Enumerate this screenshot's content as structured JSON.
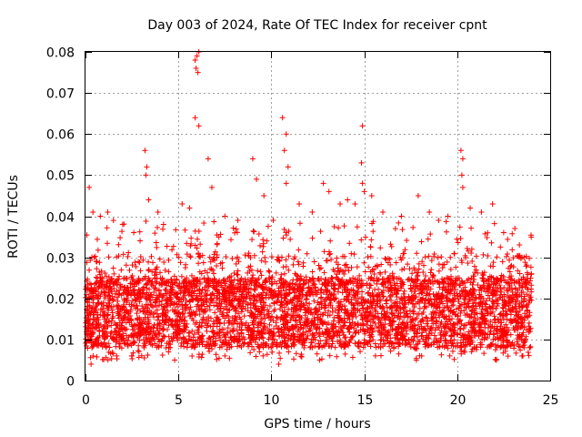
{
  "chart_data": {
    "type": "scatter",
    "title": "Day 003 of 2024, Rate Of TEC Index for receiver cpnt",
    "xlabel": "GPS time / hours",
    "ylabel": "ROTI / TECUs",
    "xlim": [
      0,
      25
    ],
    "ylim": [
      0,
      0.08
    ],
    "xticks": [
      "0",
      "5",
      "10",
      "15",
      "20",
      "25"
    ],
    "yticks": [
      "0",
      "0.01",
      "0.02",
      "0.03",
      "0.04",
      "0.05",
      "0.06",
      "0.07",
      "0.08"
    ],
    "grid": true,
    "marker": "+",
    "color": "#ff0000",
    "series": [
      {
        "name": "ROTI",
        "note": "dense cloud of several thousand points, 0-24 h, bulk 0.005-0.03 TECU/s; representative points below",
        "points": [
          [
            0.2,
            0.047
          ],
          [
            0.4,
            0.041
          ],
          [
            0.8,
            0.04
          ],
          [
            1.2,
            0.041
          ],
          [
            2.0,
            0.038
          ],
          [
            2.6,
            0.036
          ],
          [
            3.2,
            0.056
          ],
          [
            3.3,
            0.052
          ],
          [
            3.25,
            0.05
          ],
          [
            3.4,
            0.044
          ],
          [
            3.9,
            0.041
          ],
          [
            4.2,
            0.038
          ],
          [
            5.2,
            0.043
          ],
          [
            5.6,
            0.042
          ],
          [
            5.9,
            0.078
          ],
          [
            6.0,
            0.079
          ],
          [
            6.1,
            0.08
          ],
          [
            5.95,
            0.076
          ],
          [
            6.05,
            0.075
          ],
          [
            5.9,
            0.064
          ],
          [
            6.1,
            0.062
          ],
          [
            6.6,
            0.054
          ],
          [
            6.8,
            0.047
          ],
          [
            7.5,
            0.04
          ],
          [
            8.2,
            0.039
          ],
          [
            9.0,
            0.054
          ],
          [
            9.2,
            0.049
          ],
          [
            9.6,
            0.045
          ],
          [
            10.1,
            0.039
          ],
          [
            10.6,
            0.064
          ],
          [
            10.8,
            0.06
          ],
          [
            10.7,
            0.056
          ],
          [
            10.9,
            0.052
          ],
          [
            10.8,
            0.048
          ],
          [
            11.5,
            0.043
          ],
          [
            12.2,
            0.041
          ],
          [
            12.8,
            0.048
          ],
          [
            13.1,
            0.046
          ],
          [
            13.7,
            0.043
          ],
          [
            14.1,
            0.044
          ],
          [
            14.5,
            0.043
          ],
          [
            14.9,
            0.062
          ],
          [
            14.85,
            0.053
          ],
          [
            14.9,
            0.048
          ],
          [
            15.0,
            0.046
          ],
          [
            15.4,
            0.045
          ],
          [
            16.0,
            0.041
          ],
          [
            17.0,
            0.04
          ],
          [
            17.9,
            0.045
          ],
          [
            18.5,
            0.041
          ],
          [
            19.0,
            0.039
          ],
          [
            19.5,
            0.04
          ],
          [
            20.2,
            0.056
          ],
          [
            20.3,
            0.054
          ],
          [
            20.25,
            0.05
          ],
          [
            20.3,
            0.047
          ],
          [
            20.7,
            0.042
          ],
          [
            21.3,
            0.041
          ],
          [
            21.9,
            0.043
          ],
          [
            22.5,
            0.036
          ],
          [
            23.1,
            0.037
          ],
          [
            23.6,
            0.03
          ],
          [
            0.3,
            0.004
          ],
          [
            2.5,
            0.006
          ],
          [
            4.8,
            0.005
          ],
          [
            7.5,
            0.006
          ],
          [
            10.4,
            0.004
          ],
          [
            12.6,
            0.005
          ],
          [
            15.6,
            0.006
          ],
          [
            17.8,
            0.005
          ],
          [
            19.6,
            0.006
          ],
          [
            22.1,
            0.005
          ],
          [
            23.9,
            0.008
          ]
        ]
      }
    ]
  }
}
